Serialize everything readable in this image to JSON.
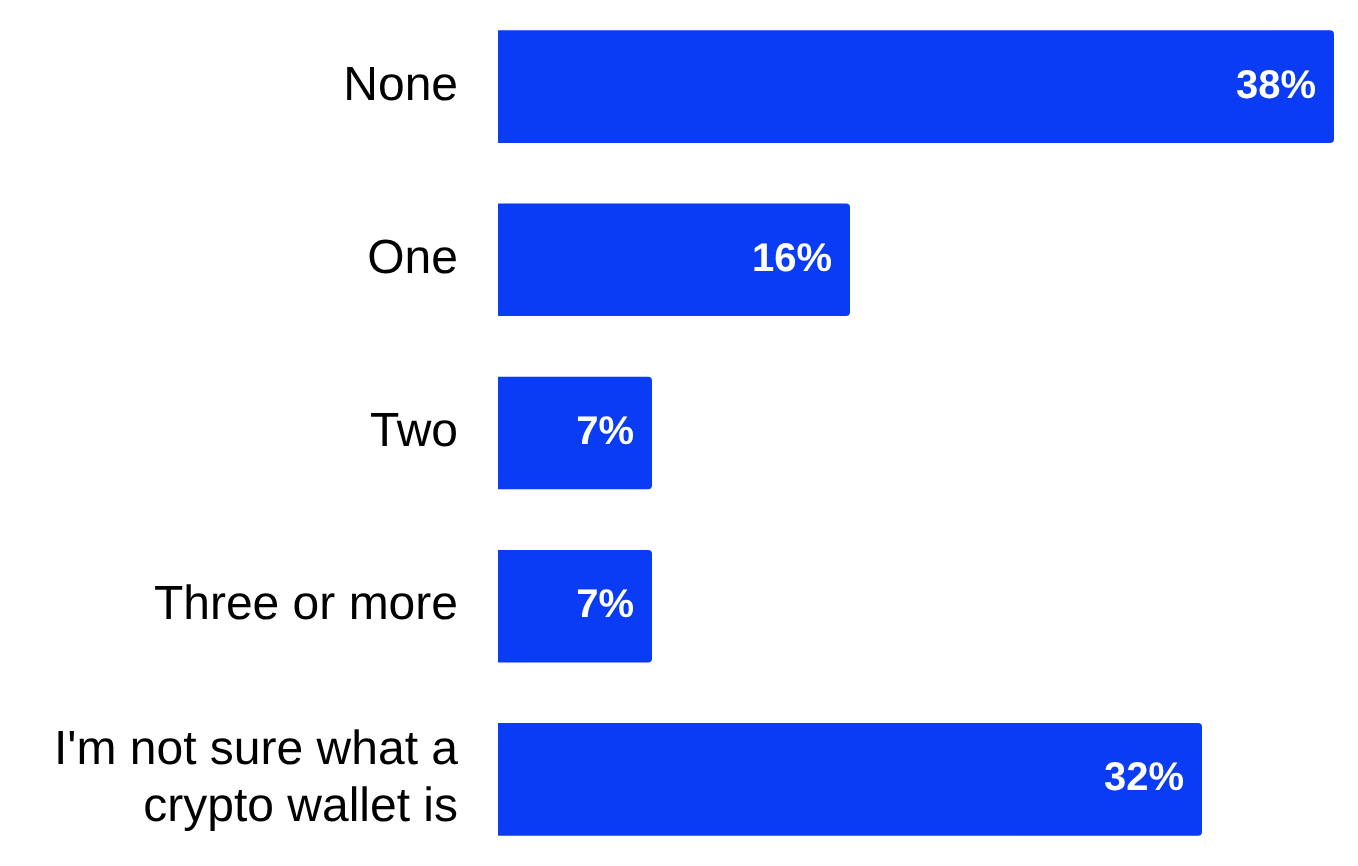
{
  "chart_data": {
    "type": "bar",
    "orientation": "horizontal",
    "categories": [
      "None",
      "One",
      "Two",
      "Three or more",
      "I'm not sure what a crypto wallet is"
    ],
    "values": [
      38,
      16,
      7,
      7,
      32
    ],
    "color": "#0a3cf5",
    "value_labels": [
      "38%",
      "16%",
      "7%",
      "7%",
      "32%"
    ],
    "legend": false
  }
}
